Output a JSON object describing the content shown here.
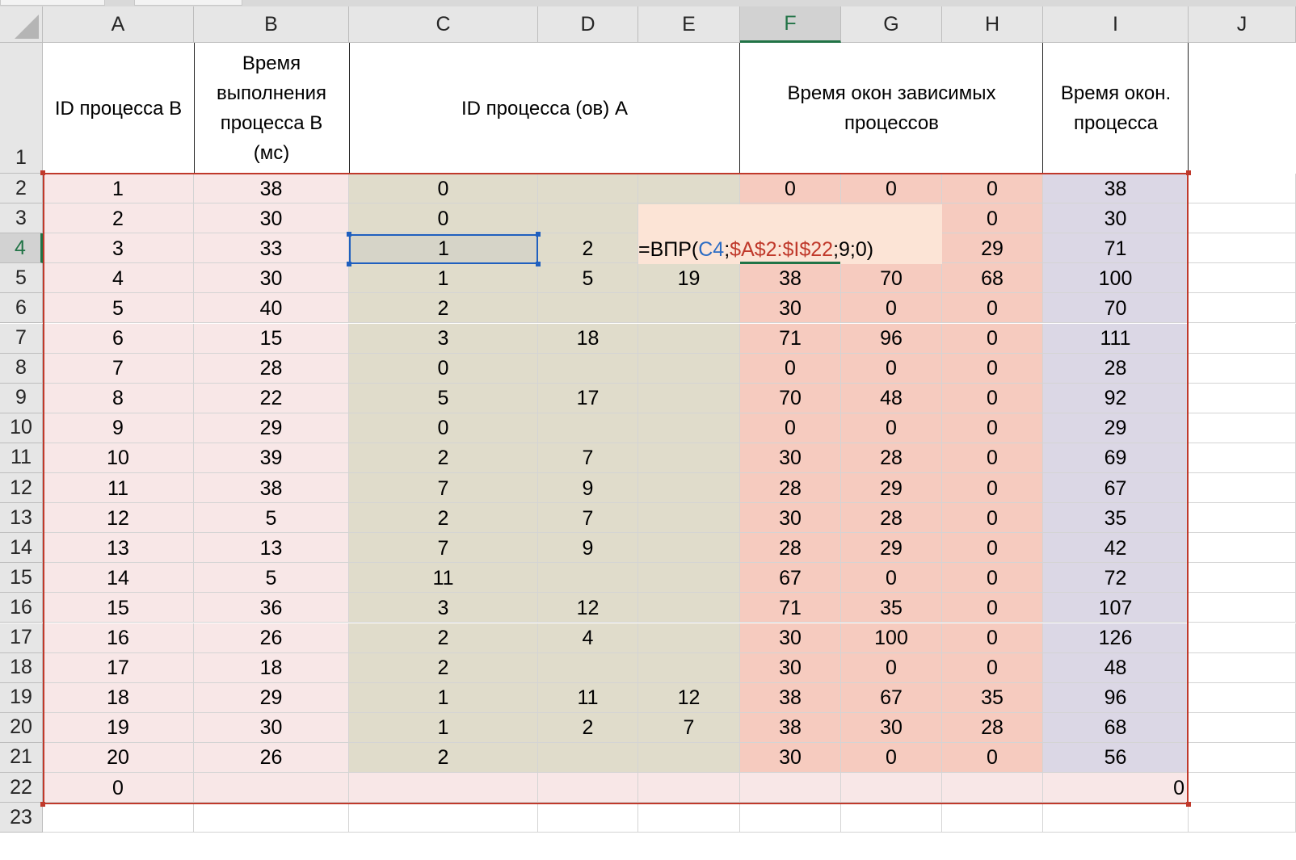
{
  "columns": [
    "A",
    "B",
    "C",
    "D",
    "E",
    "F",
    "G",
    "H",
    "I",
    "J"
  ],
  "selected_column": "F",
  "row_numbers": [
    "1",
    "2",
    "3",
    "4",
    "5",
    "6",
    "7",
    "8",
    "9",
    "10",
    "11",
    "12",
    "13",
    "14",
    "15",
    "16",
    "17",
    "18",
    "19",
    "20",
    "21",
    "22",
    "23"
  ],
  "selected_row": "4",
  "headers": {
    "a": "ID процесса B",
    "b_lines": [
      "Время",
      "выполнения",
      "процесса B",
      "(мс)"
    ],
    "cde": "ID процесса (ов) A",
    "fgh_lines": [
      "Время окон зависимых",
      "процессов"
    ],
    "i_lines": [
      "Время окон.",
      "процесса"
    ]
  },
  "rows": [
    [
      "1",
      "38",
      "0",
      "",
      "",
      "0",
      "0",
      "0",
      "38"
    ],
    [
      "2",
      "30",
      "0",
      "",
      "",
      "",
      "",
      "0",
      "30"
    ],
    [
      "3",
      "33",
      "1",
      "2",
      "",
      "",
      "",
      "29",
      "71"
    ],
    [
      "4",
      "30",
      "1",
      "5",
      "19",
      "38",
      "70",
      "68",
      "100"
    ],
    [
      "5",
      "40",
      "2",
      "",
      "",
      "30",
      "0",
      "0",
      "70"
    ],
    [
      "6",
      "15",
      "3",
      "18",
      "",
      "71",
      "96",
      "0",
      "111"
    ],
    [
      "7",
      "28",
      "0",
      "",
      "",
      "0",
      "0",
      "0",
      "28"
    ],
    [
      "8",
      "22",
      "5",
      "17",
      "",
      "70",
      "48",
      "0",
      "92"
    ],
    [
      "9",
      "29",
      "0",
      "",
      "",
      "0",
      "0",
      "0",
      "29"
    ],
    [
      "10",
      "39",
      "2",
      "7",
      "",
      "30",
      "28",
      "0",
      "69"
    ],
    [
      "11",
      "38",
      "7",
      "9",
      "",
      "28",
      "29",
      "0",
      "67"
    ],
    [
      "12",
      "5",
      "2",
      "7",
      "",
      "30",
      "28",
      "0",
      "35"
    ],
    [
      "13",
      "13",
      "7",
      "9",
      "",
      "28",
      "29",
      "0",
      "42"
    ],
    [
      "14",
      "5",
      "11",
      "",
      "",
      "67",
      "0",
      "0",
      "72"
    ],
    [
      "15",
      "36",
      "3",
      "12",
      "",
      "71",
      "35",
      "0",
      "107"
    ],
    [
      "16",
      "26",
      "2",
      "4",
      "",
      "30",
      "100",
      "0",
      "126"
    ],
    [
      "17",
      "18",
      "2",
      "",
      "",
      "30",
      "0",
      "0",
      "48"
    ],
    [
      "18",
      "29",
      "1",
      "11",
      "12",
      "38",
      "67",
      "35",
      "96"
    ],
    [
      "19",
      "30",
      "1",
      "2",
      "7",
      "38",
      "30",
      "28",
      "68"
    ],
    [
      "20",
      "26",
      "2",
      "",
      "",
      "30",
      "0",
      "0",
      "56"
    ],
    [
      "0",
      "",
      "",
      "",
      "",
      "",
      "",
      "",
      "0"
    ]
  ],
  "active_cell": {
    "ref": "C4",
    "value": "1"
  },
  "formula": {
    "prefix": "=ВПР(",
    "ref1": "C4",
    "sep1": ";",
    "ref2": "$A$2:$I$22",
    "rest": ";9;0)"
  },
  "colors": {
    "pink": "#f8e7e7",
    "olive": "#e0dccb",
    "salmon": "#f6cbbf",
    "lavender": "#dbd7e5",
    "range_border": "#c0392b",
    "active_border": "#1f5fbf",
    "excel_green": "#217346"
  }
}
